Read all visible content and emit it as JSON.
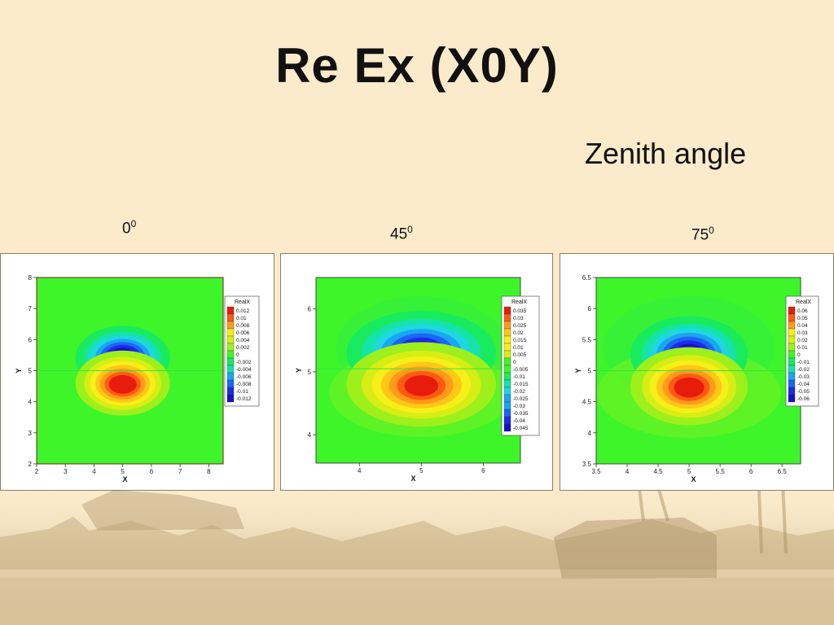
{
  "slide": {
    "title": "Re Ex  (X0Y)",
    "subtitle": "Zenith angle",
    "angles": [
      {
        "value": "0",
        "sup": "0"
      },
      {
        "value": "45",
        "sup": "0"
      },
      {
        "value": "75",
        "sup": "0"
      }
    ]
  },
  "colors": {
    "background": "#fbebcb",
    "field_base": "#3ef52a",
    "positive_ramp": [
      "#3ef52a",
      "#9df01c",
      "#d6ee15",
      "#f7f018",
      "#ffc718",
      "#ff9a1a",
      "#ff5a12",
      "#e81c0c"
    ],
    "negative_ramp": [
      "#3ef52a",
      "#19eb5e",
      "#16e3a8",
      "#1ed7e2",
      "#1aa6f0",
      "#1b66f5",
      "#1c2ce8",
      "#1412c8"
    ]
  },
  "chart_data": [
    {
      "type": "heatmap",
      "xlabel": "X",
      "ylabel": "Y",
      "xlim": [
        2,
        8.5
      ],
      "ylim": [
        2,
        8
      ],
      "xticks": [
        "2",
        "3",
        "4",
        "5",
        "6",
        "7",
        "8"
      ],
      "yticks": [
        "2",
        "3",
        "4",
        "5",
        "6",
        "7",
        "8"
      ],
      "legend_title": "RealX",
      "legend_levels": [
        "0.012",
        "0.01",
        "0.008",
        "0.006",
        "0.004",
        "0.002",
        "0",
        "-0.002",
        "-0.004",
        "-0.006",
        "-0.008",
        "-0.01",
        "-0.012"
      ],
      "extrema": [
        {
          "x": 5.0,
          "y": 5.4,
          "value": -0.012
        },
        {
          "x": 5.0,
          "y": 4.6,
          "value": 0.012
        }
      ]
    },
    {
      "type": "heatmap",
      "xlabel": "X",
      "ylabel": "Y",
      "xlim": [
        3.3,
        6.6
      ],
      "ylim": [
        3.55,
        6.5
      ],
      "xticks": [
        "4",
        "5",
        "6"
      ],
      "yticks": [
        "4",
        "5",
        "6"
      ],
      "legend_title": "RealX",
      "legend_levels": [
        "0.035",
        "0.03",
        "0.025",
        "0.02",
        "0.015",
        "0.01",
        "0.005",
        "0",
        "-0.005",
        "-0.01",
        "-0.015",
        "-0.02",
        "-0.025",
        "-0.03",
        "-0.035",
        "-0.04",
        "-0.045"
      ],
      "extrema": [
        {
          "x": 5.0,
          "y": 5.3,
          "value": -0.045
        },
        {
          "x": 5.0,
          "y": 4.8,
          "value": 0.035
        }
      ]
    },
    {
      "type": "heatmap",
      "xlabel": "X",
      "ylabel": "Y",
      "xlim": [
        3.5,
        6.8
      ],
      "ylim": [
        3.5,
        6.5
      ],
      "xticks": [
        "3.5",
        "4",
        "4.5",
        "5",
        "5.5",
        "6",
        "6.5"
      ],
      "yticks": [
        "3.5",
        "4",
        "4.5",
        "5",
        "5.5",
        "6",
        "6.5"
      ],
      "legend_title": "RealX",
      "legend_levels": [
        "0.06",
        "0.05",
        "0.04",
        "0.03",
        "0.02",
        "0.01",
        "0",
        "-0.01",
        "-0.02",
        "-0.03",
        "-0.04",
        "-0.05",
        "-0.06"
      ],
      "extrema": [
        {
          "x": 5.0,
          "y": 5.25,
          "value": -0.06
        },
        {
          "x": 5.0,
          "y": 4.75,
          "value": 0.06
        }
      ]
    }
  ]
}
